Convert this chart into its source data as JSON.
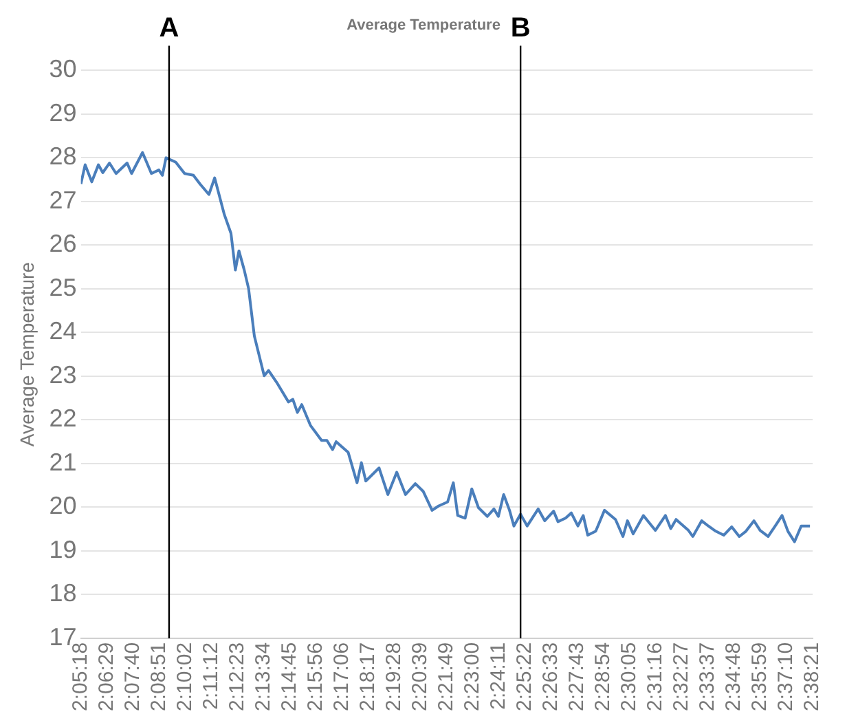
{
  "chart_data": {
    "type": "line",
    "title": "Average Temperature",
    "ylabel": "Average Temperature",
    "series": [
      {
        "color": "#4a7ebb",
        "x": [
          2.0883,
          2.0915,
          2.0965,
          2.1015,
          2.1048,
          2.1098,
          2.1148,
          2.1231,
          2.1265,
          2.1347,
          2.1414,
          2.147,
          2.1497,
          2.1524,
          2.1597,
          2.1664,
          2.173,
          2.178,
          2.1847,
          2.189,
          2.1963,
          2.2013,
          2.2046,
          2.2073,
          2.2113,
          2.2146,
          2.2189,
          2.2263,
          2.2296,
          2.2363,
          2.2446,
          2.2479,
          2.2513,
          2.2546,
          2.2612,
          2.2695,
          2.2735,
          2.2778,
          2.2805,
          2.2895,
          2.2962,
          2.2995,
          2.3028,
          2.3128,
          2.3194,
          2.3261,
          2.3327,
          2.3401,
          2.3461,
          2.3527,
          2.3577,
          2.3644,
          2.3687,
          2.372,
          2.3776,
          2.3826,
          2.3876,
          2.3943,
          2.3993,
          2.4026,
          2.4066,
          2.411,
          2.4143,
          2.4193,
          2.4243,
          2.4326,
          2.4375,
          2.4442,
          2.4475,
          2.4532,
          2.4575,
          2.4625,
          2.4665,
          2.4699,
          2.4759,
          2.4825,
          2.4908,
          2.4964,
          2.4998,
          2.5041,
          2.5118,
          2.5208,
          2.5284,
          2.5324,
          2.5364,
          2.5457,
          2.549,
          2.5557,
          2.5607,
          2.5663,
          2.5723,
          2.5783,
          2.584,
          2.589,
          2.595,
          2.5997,
          2.6057,
          2.6106,
          2.6162,
          2.6206,
          2.6256,
          2.6306,
          2.6372
        ],
        "values": [
          27.4,
          27.84,
          27.45,
          27.84,
          27.66,
          27.88,
          27.64,
          27.88,
          27.64,
          28.12,
          27.64,
          27.72,
          27.6,
          28.0,
          27.9,
          27.64,
          27.6,
          27.4,
          27.16,
          27.54,
          26.7,
          26.27,
          25.43,
          25.87,
          25.43,
          25.0,
          23.92,
          23.01,
          23.13,
          22.83,
          22.41,
          22.47,
          22.17,
          22.35,
          21.87,
          21.53,
          21.53,
          21.32,
          21.5,
          21.26,
          20.56,
          21.02,
          20.6,
          20.9,
          20.29,
          20.8,
          20.29,
          20.54,
          20.36,
          19.93,
          20.03,
          20.12,
          20.56,
          19.81,
          19.75,
          20.42,
          19.99,
          19.79,
          19.96,
          19.79,
          20.29,
          19.93,
          19.57,
          19.84,
          19.57,
          19.96,
          19.69,
          19.91,
          19.67,
          19.75,
          19.87,
          19.57,
          19.81,
          19.36,
          19.45,
          19.93,
          19.72,
          19.33,
          19.69,
          19.39,
          19.81,
          19.47,
          19.81,
          19.51,
          19.72,
          19.47,
          19.33,
          19.69,
          19.57,
          19.45,
          19.36,
          19.55,
          19.33,
          19.45,
          19.69,
          19.47,
          19.33,
          19.55,
          19.81,
          19.45,
          19.21,
          19.57,
          19.57
        ]
      }
    ],
    "xlim": [
      2.0883,
      2.6392
    ],
    "xticks": [
      {
        "value": 2.0883,
        "label": "2:05:18"
      },
      {
        "value": 2.1081,
        "label": "2:06:29"
      },
      {
        "value": 2.1278,
        "label": "2:07:40"
      },
      {
        "value": 2.1475,
        "label": "2:08:51"
      },
      {
        "value": 2.1672,
        "label": "2:10:02"
      },
      {
        "value": 2.1867,
        "label": "2:11:12"
      },
      {
        "value": 2.2064,
        "label": "2:12:23"
      },
      {
        "value": 2.2261,
        "label": "2:13:34"
      },
      {
        "value": 2.2458,
        "label": "2:14:45"
      },
      {
        "value": 2.2656,
        "label": "2:15:56"
      },
      {
        "value": 2.285,
        "label": "2:17:06"
      },
      {
        "value": 2.3047,
        "label": "2:18:17"
      },
      {
        "value": 2.3244,
        "label": "2:19:28"
      },
      {
        "value": 2.3442,
        "label": "2:20:39"
      },
      {
        "value": 2.3636,
        "label": "2:21:49"
      },
      {
        "value": 2.3833,
        "label": "2:23:00"
      },
      {
        "value": 2.4031,
        "label": "2:24:11"
      },
      {
        "value": 2.4228,
        "label": "2:25:22"
      },
      {
        "value": 2.4425,
        "label": "2:26:33"
      },
      {
        "value": 2.4619,
        "label": "2:27:43"
      },
      {
        "value": 2.4817,
        "label": "2:28:54"
      },
      {
        "value": 2.5014,
        "label": "2:30:05"
      },
      {
        "value": 2.5211,
        "label": "2:31:16"
      },
      {
        "value": 2.5408,
        "label": "2:32:27"
      },
      {
        "value": 2.5603,
        "label": "2:33:37"
      },
      {
        "value": 2.58,
        "label": "2:34:48"
      },
      {
        "value": 2.5997,
        "label": "2:35:59"
      },
      {
        "value": 2.6194,
        "label": "2:37:10"
      },
      {
        "value": 2.6392,
        "label": "2:38:21"
      }
    ],
    "ylim": [
      17,
      30
    ],
    "yticks": [
      17,
      18,
      19,
      20,
      21,
      22,
      23,
      24,
      25,
      26,
      27,
      28,
      29,
      30
    ],
    "grid": "y",
    "legend": false,
    "marker": "none",
    "line_style": "solid",
    "ref_lines": [
      {
        "axis": "x",
        "value": 2.1547,
        "label": "A",
        "color": "#000000"
      },
      {
        "axis": "x",
        "value": 2.4193,
        "label": "B",
        "color": "#000000"
      }
    ]
  }
}
